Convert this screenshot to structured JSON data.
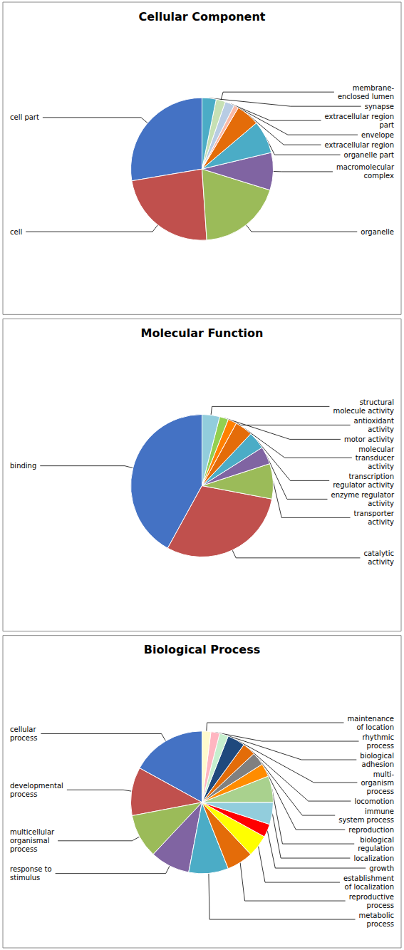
{
  "chart_data": [
    {
      "type": "pie",
      "title": "Cellular Component",
      "categories": [
        "cell part",
        "cell",
        "organelle",
        "macromolecular\ncomplex",
        "organelle part",
        "extracellular region",
        "envelope",
        "extracellular region\npart",
        "membrane-\nenclosed lumen",
        "synapse"
      ],
      "values": [
        26,
        22,
        18,
        8,
        7,
        5,
        1,
        2,
        2,
        3
      ],
      "colors": [
        "#4472C4",
        "#C0504D",
        "#9BBB59",
        "#8064A2",
        "#4BACC6",
        "#E46C09",
        "#FAB9A5",
        "#B8CCE4",
        "#C6E0B4",
        "#4BACC6"
      ]
    },
    {
      "type": "pie",
      "title": "Molecular Function",
      "categories": [
        "binding",
        "catalytic\nactivity",
        "transporter\nactivity",
        "enzyme regulator\nactivity",
        "transcription\nregulator activity",
        "molecular\ntransducer\nactivity",
        "antioxidant\nactivity",
        "motor activity",
        "structural\nmolecule activity"
      ],
      "values": [
        42,
        30,
        8,
        4,
        4,
        4,
        2,
        2,
        4
      ],
      "colors": [
        "#4472C4",
        "#C0504D",
        "#9BBB59",
        "#8064A2",
        "#4BACC6",
        "#E46C09",
        "#FF8000",
        "#92D050",
        "#92CDDC"
      ]
    },
    {
      "type": "pie",
      "title": "Biological Process",
      "categories": [
        "cellular\nprocess",
        "developmental\nprocess",
        "multicellular\norganismal\nprocess",
        "response to\nstimulus",
        "metabolic\nprocess",
        "reproductive\nprocess",
        "establishment\nof localization",
        "growth",
        "localization",
        "biological\nregulation",
        "reproduction",
        "immune\nsystem process",
        "locomotion",
        "multi-\norganism\nprocess",
        "biological\nadhesion",
        "rhythmic\nprocess",
        "maintenance\nof location"
      ],
      "values": [
        17,
        11,
        10,
        9,
        9,
        6,
        5,
        3,
        5,
        6,
        3,
        3,
        3,
        4,
        2,
        2,
        2
      ],
      "colors": [
        "#4472C4",
        "#C0504D",
        "#9BBB59",
        "#8064A2",
        "#4BACC6",
        "#E46C09",
        "#FFFF00",
        "#FF0000",
        "#92CDDC",
        "#A9D18E",
        "#FF8C00",
        "#808080",
        "#E36C09",
        "#1F497D",
        "#C6EFCE",
        "#FFB6C1",
        "#FFFACD"
      ]
    }
  ]
}
